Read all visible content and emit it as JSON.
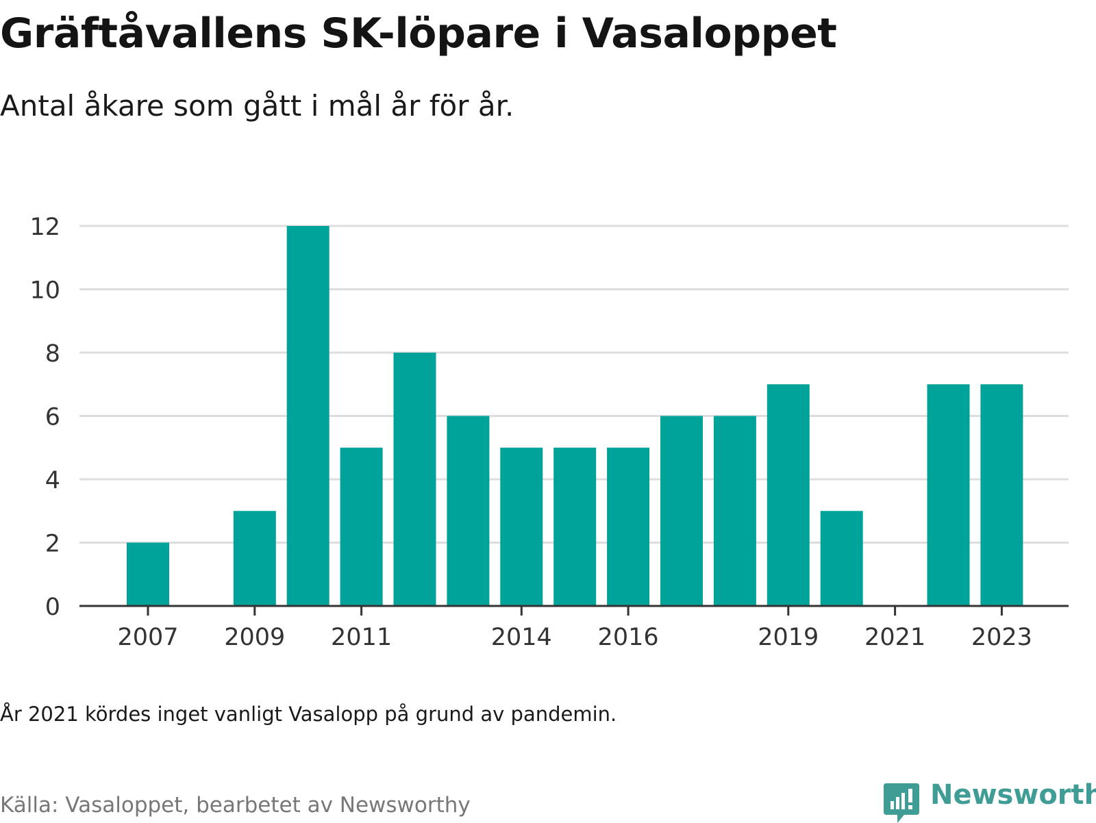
{
  "chart_data": {
    "type": "bar",
    "title": "Gräftåvallens SK-löpare i Vasaloppet",
    "subtitle": "Antal åkare som gått i mål år för år.",
    "xlabel": "",
    "ylabel": "",
    "categories": [
      "2007",
      "2008",
      "2009",
      "2010",
      "2011",
      "2012",
      "2013",
      "2014",
      "2015",
      "2016",
      "2017",
      "2018",
      "2019",
      "2020",
      "2021",
      "2022",
      "2023"
    ],
    "values": [
      2,
      null,
      3,
      12,
      5,
      8,
      6,
      5,
      5,
      5,
      6,
      6,
      7,
      3,
      null,
      7,
      7
    ],
    "x_tick_labels": [
      "2007",
      "2009",
      "2011",
      "2014",
      "2016",
      "2019",
      "2021",
      "2023"
    ],
    "y_ticks": [
      0,
      2,
      4,
      6,
      8,
      10,
      12
    ],
    "ylim": [
      0,
      12
    ],
    "grid": true,
    "bar_color": "#00a39a",
    "grid_color": "#dddddd",
    "axis_color": "#333333"
  },
  "note": "År 2021 kördes inget vanligt Vasalopp på grund av pandemin.",
  "source": "Källa: Vasaloppet, bearbetet av Newsworthy",
  "brand": {
    "name": "Newsworthy",
    "icon": "newsworthy-logo-icon",
    "color": "#3f9d96"
  }
}
